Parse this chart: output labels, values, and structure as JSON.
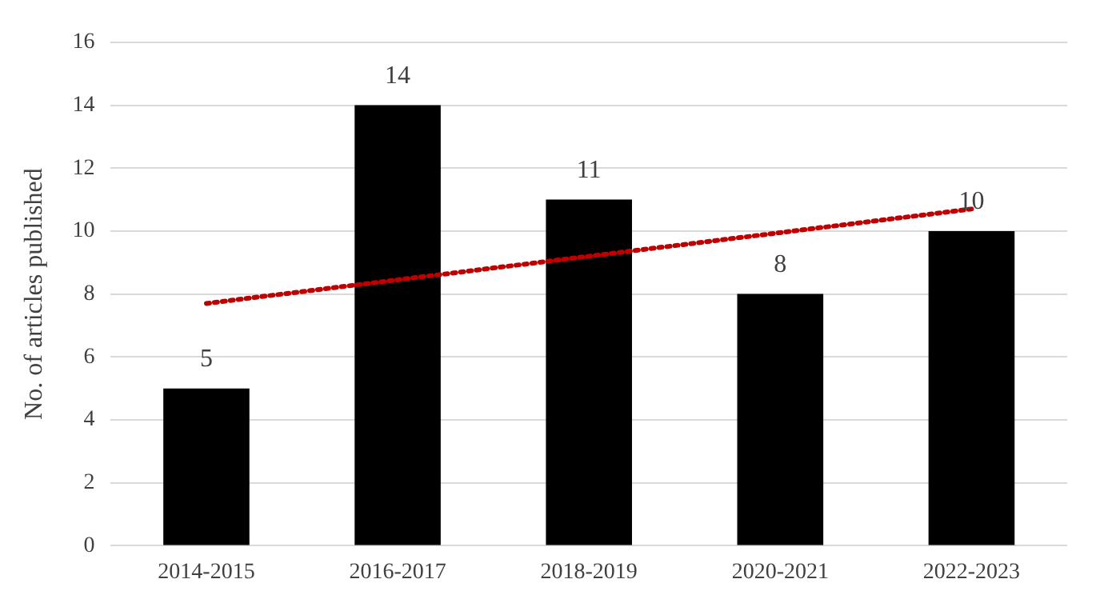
{
  "chart_data": {
    "type": "bar",
    "ylabel": "No. of articles published",
    "categories": [
      "2014-2015",
      "2016-2017",
      "2018-2019",
      "2020-2021",
      "2022-2023"
    ],
    "series": [
      {
        "color": "#000000",
        "values": [
          5,
          14,
          11,
          8,
          10
        ],
        "value_labels": [
          "5",
          "14",
          "11",
          "8",
          "10"
        ]
      },
      {
        "type": "line",
        "color": "#c00000",
        "line_style": "dotted",
        "x": [
          "2014-2015",
          "2022-2023"
        ],
        "values": [
          7.7,
          10.7
        ]
      }
    ],
    "ylim": [
      0,
      16
    ],
    "yticks": [
      0,
      2,
      4,
      6,
      8,
      10,
      12,
      14,
      16
    ],
    "grid": "y",
    "legend": false
  }
}
